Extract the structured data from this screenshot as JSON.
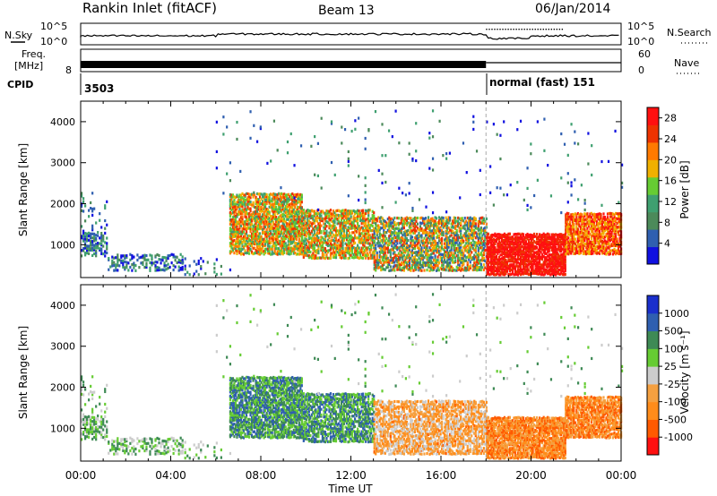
{
  "header": {
    "station": "Rankin Inlet (fitACF)",
    "beam": "Beam 13",
    "date": "06/Jan/2014"
  },
  "noise_panel": {
    "left_label": "N.Sky",
    "left_ticks": [
      "10^5",
      "10^0"
    ],
    "right_ticks": [
      "10^5",
      "10^0"
    ],
    "right_label": "N.Search"
  },
  "freq_panel": {
    "left_label_1": "Freq.",
    "left_label_2": "[MHz]",
    "left_tick": "8",
    "right_ticks": [
      "60",
      "0"
    ],
    "right_label": "Nave"
  },
  "cpid": {
    "label": "CPID",
    "program_1": "3503",
    "program_2": "normal (fast) 151"
  },
  "colors": {
    "power_scale": [
      "#1010e0",
      "#2f5fb0",
      "#4c8a5a",
      "#3fa070",
      "#66cc33",
      "#f0b000",
      "#ff7a00",
      "#ee3300",
      "#ff1010"
    ],
    "velocity_scale": [
      "#ff1010",
      "#ff5a00",
      "#ff8c1a",
      "#f5a040",
      "#cccccc",
      "#66cc33",
      "#3e8a55",
      "#2f5fb0",
      "#1a2fcc"
    ]
  },
  "chart_data": [
    {
      "type": "heatmap",
      "name_shown": "",
      "ylabel": "Slant Range [km]",
      "y_ticks": [
        "1000",
        "2000",
        "3000",
        "4000"
      ],
      "ylim": [
        200,
        4500
      ],
      "colorbar_label": "Power [dB]",
      "colorbar_ticks": [
        "4",
        "8",
        "12",
        "16",
        "20",
        "24",
        "28"
      ],
      "colorbar_range": [
        0,
        30
      ]
    },
    {
      "type": "heatmap",
      "ylabel": "Slant Range [km]",
      "y_ticks": [
        "1000",
        "2000",
        "3000",
        "4000"
      ],
      "ylim": [
        200,
        4500
      ],
      "colorbar_label": "Velocity [m s⁻¹]",
      "colorbar_ticks": [
        "1000",
        "500",
        "100",
        "25",
        "-25",
        "-100",
        "-500",
        "-1000"
      ]
    }
  ],
  "xaxis": {
    "label": "Time UT",
    "ticks": [
      "00:00",
      "04:00",
      "08:00",
      "12:00",
      "16:00",
      "20:00",
      "00:00"
    ],
    "xlim_hours": [
      0,
      24
    ]
  }
}
